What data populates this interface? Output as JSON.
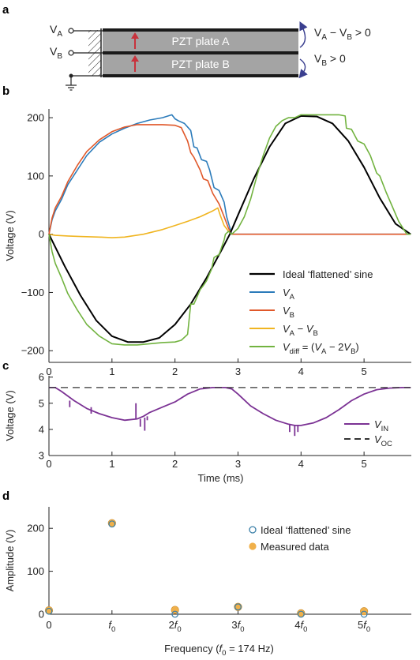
{
  "panel_labels": {
    "a": "a",
    "b": "b",
    "c": "c",
    "d": "d"
  },
  "diagram": {
    "plate_a": "PZT plate A",
    "plate_b": "PZT plate B",
    "va": {
      "base": "V",
      "sub": "A"
    },
    "vb": {
      "base": "V",
      "sub": "B"
    },
    "annot_top": {
      "v1": "V",
      "s1": "A",
      "mid": " − ",
      "v2": "V",
      "s2": "B",
      "rest": " > 0"
    },
    "annot_bot": {
      "v1": "V",
      "s1": "B",
      "rest": " > 0"
    },
    "colors": {
      "plate": "#a4a4a4",
      "electrode": "#1a1a1a",
      "arrow": "#c8323c",
      "annot_arrow": "#3a3f8f"
    }
  },
  "chart_data": [
    {
      "id": "b",
      "type": "line",
      "title": "",
      "xlabel": "",
      "ylabel": "Voltage (V)",
      "xlim": [
        0,
        5.75
      ],
      "ylim": [
        -220,
        215
      ],
      "xticks": [
        0,
        1,
        2,
        3,
        4,
        5
      ],
      "yticks": [
        -200,
        -100,
        0,
        100,
        200
      ],
      "ytick_labels": [
        "−200",
        "−100",
        "0",
        "100",
        "200"
      ],
      "legend_position": "bottom-right",
      "series": [
        {
          "key": "ideal",
          "label": "Ideal ‘flattened’ sine",
          "color": "#000000",
          "x": [
            0.0,
            0.25,
            0.5,
            0.75,
            1.0,
            1.25,
            1.5,
            1.75,
            2.0,
            2.25,
            2.5,
            2.75,
            2.87,
            3.0,
            3.25,
            3.5,
            3.75,
            4.0,
            4.25,
            4.5,
            4.75,
            5.0,
            5.25,
            5.5,
            5.74
          ],
          "y": [
            0,
            -55,
            -105,
            -148,
            -175,
            -185,
            -185,
            -178,
            -155,
            -120,
            -75,
            -25,
            0,
            33,
            95,
            150,
            190,
            203,
            202,
            190,
            160,
            115,
            62,
            18,
            0
          ]
        },
        {
          "key": "va",
          "label": {
            "base": "V",
            "sub": "A"
          },
          "color": "#2b7bba",
          "x": [
            0.0,
            0.05,
            0.1,
            0.2,
            0.3,
            0.45,
            0.6,
            0.8,
            1.0,
            1.2,
            1.4,
            1.6,
            1.8,
            1.95,
            2.0,
            2.05,
            2.15,
            2.25,
            2.3,
            2.35,
            2.42,
            2.5,
            2.55,
            2.62,
            2.7,
            2.78,
            2.82,
            2.9,
            5.74
          ],
          "y": [
            0,
            25,
            40,
            60,
            85,
            110,
            135,
            158,
            172,
            182,
            190,
            196,
            200,
            205,
            198,
            195,
            190,
            178,
            150,
            148,
            128,
            125,
            110,
            80,
            75,
            55,
            30,
            0,
            0
          ]
        },
        {
          "key": "vb",
          "label": {
            "base": "V",
            "sub": "B"
          },
          "color": "#e0582a",
          "x": [
            0.0,
            0.05,
            0.1,
            0.2,
            0.3,
            0.45,
            0.6,
            0.8,
            1.0,
            1.2,
            1.4,
            1.6,
            1.8,
            2.0,
            2.1,
            2.2,
            2.25,
            2.3,
            2.4,
            2.45,
            2.52,
            2.6,
            2.7,
            2.78,
            2.85,
            2.9,
            5.74
          ],
          "y": [
            0,
            28,
            45,
            65,
            90,
            118,
            142,
            162,
            176,
            184,
            188,
            188,
            188,
            187,
            183,
            160,
            140,
            132,
            110,
            95,
            92,
            70,
            52,
            30,
            10,
            0,
            0
          ]
        },
        {
          "key": "vab",
          "label": {
            "v1": "V",
            "s1": "A",
            "mid": " − ",
            "v2": "V",
            "s2": "B"
          },
          "color": "#f0b521",
          "x": [
            0.0,
            0.1,
            0.3,
            0.5,
            0.8,
            1.0,
            1.2,
            1.5,
            1.8,
            2.0,
            2.2,
            2.4,
            2.6,
            2.68,
            2.72,
            2.78,
            2.85,
            2.9
          ],
          "y": [
            0,
            -2,
            -3,
            -4,
            -5,
            -6,
            -5,
            0,
            8,
            15,
            22,
            30,
            40,
            45,
            32,
            15,
            5,
            0
          ]
        },
        {
          "key": "vdiff",
          "label": {
            "v": "V",
            "s": "diff",
            "rest1": " = (",
            "v2": "V",
            "s2": "A",
            "mid": " − 2",
            "v3": "V",
            "s3": "B",
            "rest2": ")"
          },
          "color": "#72b340",
          "x": [
            0.0,
            0.05,
            0.1,
            0.2,
            0.3,
            0.45,
            0.6,
            0.8,
            1.0,
            1.2,
            1.4,
            1.6,
            1.8,
            2.0,
            2.1,
            2.2,
            2.25,
            2.3,
            2.4,
            2.45,
            2.5,
            2.58,
            2.62,
            2.7,
            2.78,
            2.8,
            2.85,
            2.9,
            3.0,
            3.1,
            3.2,
            3.3,
            3.4,
            3.5,
            3.6,
            3.7,
            3.8,
            3.9,
            4.0,
            4.2,
            4.4,
            4.6,
            4.7,
            4.72,
            4.8,
            4.9,
            5.0,
            5.1,
            5.2,
            5.25,
            5.35,
            5.45,
            5.55,
            5.62,
            5.68,
            5.74
          ],
          "y": [
            0,
            -30,
            -50,
            -75,
            -102,
            -130,
            -155,
            -175,
            -188,
            -190,
            -190,
            -188,
            -186,
            -185,
            -182,
            -172,
            -120,
            -120,
            -95,
            -88,
            -80,
            -60,
            -40,
            -35,
            -10,
            0,
            5,
            0,
            10,
            30,
            60,
            100,
            135,
            165,
            185,
            195,
            200,
            200,
            205,
            205,
            205,
            205,
            203,
            182,
            180,
            160,
            155,
            135,
            105,
            100,
            72,
            47,
            22,
            10,
            0,
            0
          ]
        }
      ]
    },
    {
      "id": "c",
      "type": "line",
      "title": "",
      "xlabel": "Time (ms)",
      "ylabel": "Voltage (V)",
      "xlim": [
        0,
        5.75
      ],
      "ylim": [
        3,
        6.05
      ],
      "xticks": [
        0,
        1,
        2,
        3,
        4,
        5
      ],
      "yticks": [
        3,
        4,
        5,
        6
      ],
      "legend_position": "bottom-right",
      "series": [
        {
          "key": "vin",
          "label": {
            "base": "V",
            "sub": "IN"
          },
          "color": "#7b3294",
          "x": [
            0.0,
            0.1,
            0.2,
            0.4,
            0.6,
            0.8,
            1.0,
            1.2,
            1.4,
            1.5,
            1.6,
            1.8,
            2.0,
            2.2,
            2.4,
            2.6,
            2.8,
            2.9,
            3.0,
            3.2,
            3.4,
            3.6,
            3.8,
            3.9,
            4.0,
            4.2,
            4.4,
            4.6,
            4.8,
            5.0,
            5.2,
            5.4,
            5.6,
            5.74
          ],
          "y": [
            5.6,
            5.6,
            5.45,
            5.1,
            4.8,
            4.6,
            4.45,
            4.35,
            4.4,
            4.5,
            4.65,
            4.85,
            5.05,
            5.35,
            5.55,
            5.6,
            5.6,
            5.55,
            5.35,
            4.9,
            4.6,
            4.35,
            4.2,
            4.15,
            4.15,
            4.25,
            4.45,
            4.75,
            5.1,
            5.35,
            5.52,
            5.58,
            5.6,
            5.6
          ]
        },
        {
          "key": "voc",
          "label": {
            "base": "V",
            "sub": "OC"
          },
          "color": "#333333",
          "dashed": true,
          "x": [
            0.0,
            5.74
          ],
          "y": [
            5.6,
            5.6
          ]
        }
      ],
      "spikes": [
        {
          "x": 0.33,
          "from": 5.1,
          "to": 4.85
        },
        {
          "x": 0.67,
          "from": 4.85,
          "to": 4.6
        },
        {
          "x": 1.38,
          "from": 4.4,
          "to": 5.0
        },
        {
          "x": 1.45,
          "from": 4.4,
          "to": 4.1
        },
        {
          "x": 1.52,
          "from": 4.45,
          "to": 3.95
        },
        {
          "x": 1.56,
          "from": 4.5,
          "to": 4.35
        },
        {
          "x": 3.82,
          "from": 4.18,
          "to": 3.9
        },
        {
          "x": 3.9,
          "from": 4.15,
          "to": 3.75
        },
        {
          "x": 3.95,
          "from": 4.15,
          "to": 3.9
        }
      ]
    },
    {
      "id": "d",
      "type": "scatter",
      "title": "",
      "xlabel": "Frequency (f0 = 174 Hz)",
      "xlabel_parts": {
        "pre": "Frequency (",
        "f": "f",
        "sub": "0",
        "post": " = 174 Hz)"
      },
      "ylabel": "Amplitude (V)",
      "xlim": [
        0,
        5.75
      ],
      "ylim": [
        0,
        250
      ],
      "xticks": [
        0,
        1,
        2,
        3,
        4,
        5
      ],
      "xtick_labels": [
        {
          "coef": "0",
          "f": "",
          "sub": ""
        },
        {
          "coef": "",
          "f": "f",
          "sub": "0"
        },
        {
          "coef": "2",
          "f": "f",
          "sub": "0"
        },
        {
          "coef": "3",
          "f": "f",
          "sub": "0"
        },
        {
          "coef": "4",
          "f": "f",
          "sub": "0"
        },
        {
          "coef": "5",
          "f": "f",
          "sub": "0"
        }
      ],
      "yticks": [
        0,
        100,
        200
      ],
      "legend_position": "top-right",
      "series": [
        {
          "key": "ideal_pts",
          "label": "Ideal ‘flattened’ sine",
          "color": "#3a7fa8",
          "marker": "open-circle",
          "x": [
            0,
            1,
            2,
            3,
            4,
            5
          ],
          "y": [
            7,
            210,
            0,
            17,
            0,
            0
          ]
        },
        {
          "key": "meas_pts",
          "label": "Measured data",
          "color": "#f0b04a",
          "marker": "filled-circle",
          "x": [
            0,
            1,
            2,
            3,
            4,
            5
          ],
          "y": [
            9,
            212,
            10,
            17,
            2,
            7
          ]
        }
      ]
    }
  ]
}
